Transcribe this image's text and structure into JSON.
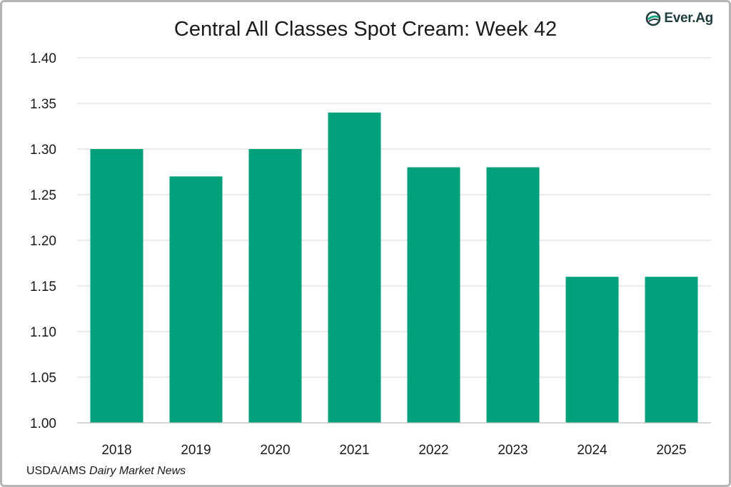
{
  "logo": {
    "text": "Ever.Ag",
    "icon": "ever-ag-leaf-icon"
  },
  "source": {
    "prefix": "USDA/AMS",
    "publication": "Dairy Market News"
  },
  "colors": {
    "bar": "#00A07D",
    "grid": "#d6d6d6",
    "axis": "#bdbdbd",
    "text": "#1a1a1a"
  },
  "chart_data": {
    "type": "bar",
    "title": "Central All Classes Spot Cream: Week 42",
    "xlabel": "",
    "ylabel": "",
    "categories": [
      "2018",
      "2019",
      "2020",
      "2021",
      "2022",
      "2023",
      "2024",
      "2025"
    ],
    "values": [
      1.3,
      1.27,
      1.3,
      1.34,
      1.28,
      1.28,
      1.16,
      1.16
    ],
    "ylim": [
      1.0,
      1.4
    ],
    "yticks": [
      "1.00",
      "1.05",
      "1.10",
      "1.15",
      "1.20",
      "1.25",
      "1.30",
      "1.35",
      "1.40"
    ],
    "grid": true,
    "legend": "none"
  }
}
